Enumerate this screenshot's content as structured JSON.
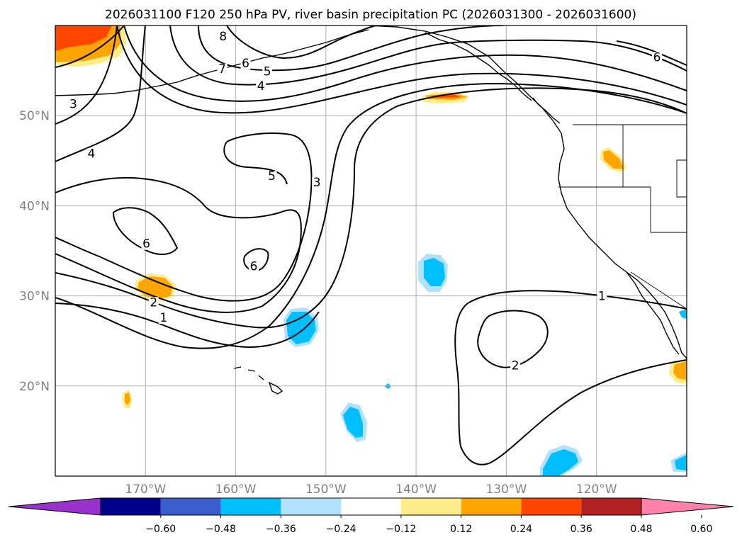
{
  "title": "2026031100 F120 250 hPa PV, river basin precipitation PC (2026031300 - 2026031600)",
  "map": {
    "lon_range": [
      -180,
      -110
    ],
    "lat_range": [
      10,
      60
    ],
    "lat_ticks": [
      {
        "value": 20,
        "label": "20°N"
      },
      {
        "value": 30,
        "label": "30°N"
      },
      {
        "value": 40,
        "label": "40°N"
      },
      {
        "value": 50,
        "label": "50°N"
      }
    ],
    "lon_ticks": [
      {
        "value": -170,
        "label": "170°W"
      },
      {
        "value": -160,
        "label": "160°W"
      },
      {
        "value": -150,
        "label": "150°W"
      },
      {
        "value": -140,
        "label": "140°W"
      },
      {
        "value": -130,
        "label": "130°W"
      },
      {
        "value": -120,
        "label": "120°W"
      }
    ],
    "grid": true
  },
  "pv_contour_labels": [
    {
      "text": "8",
      "lon": -161.4,
      "lat": 58.5
    },
    {
      "text": "7",
      "lon": -161.5,
      "lat": 54.9
    },
    {
      "text": "6",
      "lon": -158.9,
      "lat": 55.5
    },
    {
      "text": "5",
      "lon": -156.5,
      "lat": 54.6
    },
    {
      "text": "4",
      "lon": -157.2,
      "lat": 53.0
    },
    {
      "text": "3",
      "lon": -178.0,
      "lat": 51.0
    },
    {
      "text": "4",
      "lon": -176.0,
      "lat": 45.5
    },
    {
      "text": "5",
      "lon": -156.0,
      "lat": 43.0
    },
    {
      "text": "3",
      "lon": -151.0,
      "lat": 42.3
    },
    {
      "text": "6",
      "lon": -169.9,
      "lat": 35.5
    },
    {
      "text": "6",
      "lon": -158.0,
      "lat": 33.0
    },
    {
      "text": "2",
      "lon": -169.1,
      "lat": 29.0
    },
    {
      "text": "1",
      "lon": -168.0,
      "lat": 27.3
    },
    {
      "text": "1",
      "lon": -119.4,
      "lat": 29.7
    },
    {
      "text": "2",
      "lon": -129.0,
      "lat": 22.0
    },
    {
      "text": "6",
      "lon": -113.3,
      "lat": 56.2
    }
  ],
  "colorbar": {
    "colors": [
      "#9932cc",
      "#00008b",
      "#3a5fcd",
      "#00bfff",
      "#b0e2ff",
      "#ffffff",
      "#ffec8b",
      "#ffa500",
      "#ff4500",
      "#b22222",
      "#ff82ab"
    ],
    "tick_labels": [
      "−0.60",
      "−0.48",
      "−0.36",
      "−0.24",
      "−0.12",
      "0.12",
      "0.24",
      "0.36",
      "0.48",
      "0.60"
    ]
  }
}
